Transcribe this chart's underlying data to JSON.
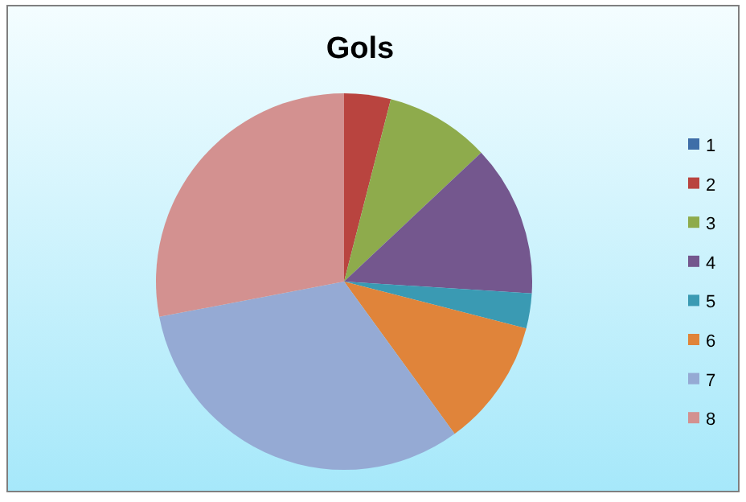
{
  "chart_data": {
    "type": "pie",
    "title": "Gols",
    "categories": [
      "1",
      "2",
      "3",
      "4",
      "5",
      "6",
      "7",
      "8"
    ],
    "values": [
      0,
      4,
      9,
      13,
      3,
      11,
      32,
      28
    ],
    "colors": [
      "#3f6ea8",
      "#b9443f",
      "#8eab4c",
      "#74578e",
      "#3a9ab3",
      "#e0843a",
      "#95aad4",
      "#d39190"
    ],
    "legend": "right"
  }
}
